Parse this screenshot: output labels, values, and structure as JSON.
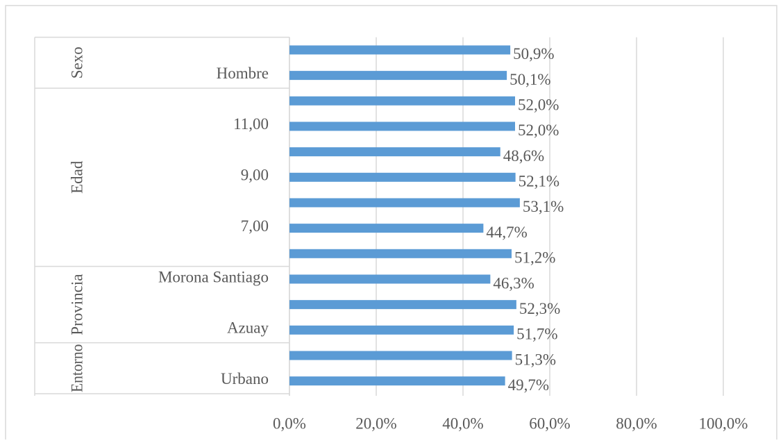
{
  "chart_data": {
    "type": "bar",
    "orientation": "horizontal",
    "categories": [
      null,
      "Hombre",
      null,
      "11,00",
      null,
      "9,00",
      null,
      "7,00",
      null,
      "Morona Santiago",
      null,
      "Azuay",
      null,
      "Urbano"
    ],
    "category_groups": [
      {
        "name": "Sexo",
        "span": 2
      },
      {
        "name": "Edad",
        "span": 7
      },
      {
        "name": "Provincia",
        "span": 3
      },
      {
        "name": "Entorno",
        "span": 2
      }
    ],
    "values": [
      50.9,
      50.1,
      52.0,
      52.0,
      48.6,
      52.1,
      53.1,
      44.7,
      51.2,
      46.3,
      52.3,
      51.7,
      51.3,
      49.7
    ],
    "value_labels": [
      "50,9%",
      "50,1%",
      "52,0%",
      "52,0%",
      "48,6%",
      "52,1%",
      "53,1%",
      "44,7%",
      "51,2%",
      "46,3%",
      "52,3%",
      "51,7%",
      "51,3%",
      "49,7%"
    ],
    "color": "#5b9bd5",
    "xlim": [
      0,
      100
    ],
    "xticks": [
      {
        "value": 0,
        "label": "0,0%"
      },
      {
        "value": 20,
        "label": "20,0%"
      },
      {
        "value": 40,
        "label": "40,0%"
      },
      {
        "value": 60,
        "label": "60,0%"
      },
      {
        "value": 80,
        "label": "80,0%"
      },
      {
        "value": 100,
        "label": "100,0%"
      }
    ],
    "grid": true
  }
}
